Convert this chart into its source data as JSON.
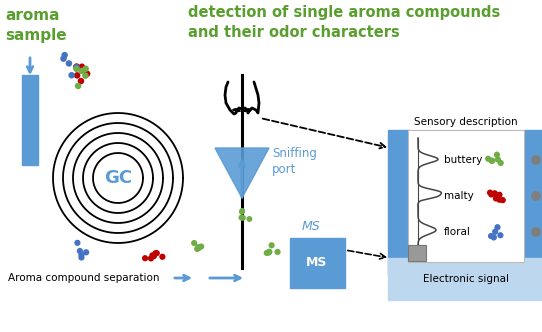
{
  "title_left": "aroma\nsample",
  "title_right": "detection of single aroma compounds\nand their odor characters",
  "title_color": "#5a9e2f",
  "gc_label": "GC",
  "sniffing_port_label": "Sniffing\nport",
  "ms_label": "MS",
  "sensory_label": "Sensory description",
  "electronic_label": "Electronic signal",
  "aroma_sep_label": "Aroma compound separation",
  "odor_labels": [
    "buttery",
    "malty",
    "floral"
  ],
  "blue_color": "#5b9bd5",
  "light_blue": "#bdd7ee",
  "bg_color": "#ffffff",
  "dot_red": "#c00000",
  "dot_blue": "#4472c4",
  "dot_green": "#70ad47",
  "dot_gray": "#7f7f7f"
}
